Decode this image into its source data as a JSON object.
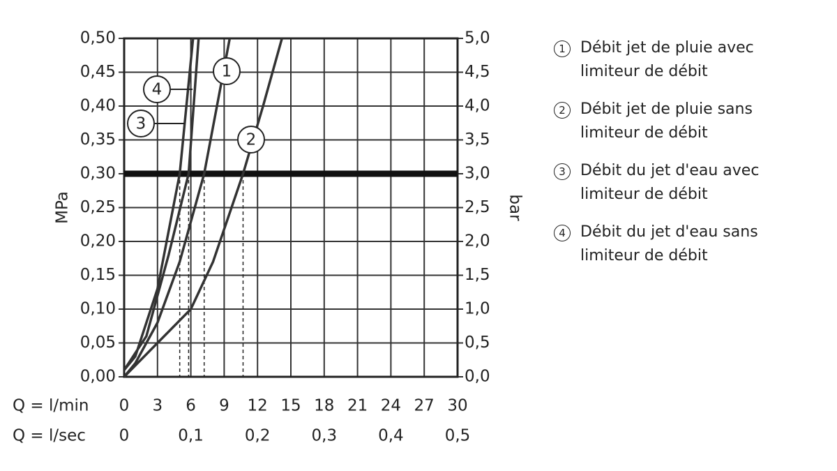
{
  "chart_data": {
    "type": "line",
    "xlabel": "Q = l/min",
    "x2label": "Q = l/sec",
    "ylabel": "MPa",
    "y2label": "bar",
    "xlim": [
      0,
      30
    ],
    "xticks": [
      0,
      3,
      6,
      9,
      12,
      15,
      18,
      21,
      24,
      27,
      30
    ],
    "x2lim": [
      0,
      0.5
    ],
    "x2ticks": [
      0,
      {
        "value": 0.1,
        "label": "0,1"
      },
      {
        "value": 0.2,
        "label": "0,2"
      },
      {
        "value": 0.3,
        "label": "0,3"
      },
      {
        "value": 0.4,
        "label": "0,4"
      },
      {
        "value": 0.5,
        "label": "0,5"
      }
    ],
    "ylim": [
      0,
      0.5
    ],
    "yticks": [
      {
        "value": 0,
        "label": "0,00"
      },
      {
        "value": 0.05,
        "label": "0,05"
      },
      {
        "value": 0.1,
        "label": "0,10"
      },
      {
        "value": 0.15,
        "label": "0,15"
      },
      {
        "value": 0.2,
        "label": "0,20"
      },
      {
        "value": 0.25,
        "label": "0,25"
      },
      {
        "value": 0.3,
        "label": "0,30"
      },
      {
        "value": 0.35,
        "label": "0,35"
      },
      {
        "value": 0.4,
        "label": "0,40"
      },
      {
        "value": 0.45,
        "label": "0,45"
      },
      {
        "value": 0.5,
        "label": "0,50"
      }
    ],
    "y2lim": [
      0,
      5
    ],
    "y2ticks": [
      {
        "value": 0,
        "label": "0,0"
      },
      {
        "value": 0.5,
        "label": "0,5"
      },
      {
        "value": 1,
        "label": "1,0"
      },
      {
        "value": 1.5,
        "label": "1,5"
      },
      {
        "value": 2,
        "label": "2,0"
      },
      {
        "value": 2.5,
        "label": "2,5"
      },
      {
        "value": 3,
        "label": "3,0"
      },
      {
        "value": 3.5,
        "label": "3,5"
      },
      {
        "value": 4,
        "label": "4,0"
      },
      {
        "value": 4.5,
        "label": "4,5"
      },
      {
        "value": 5,
        "label": "5,0"
      }
    ],
    "grid": true,
    "color": "#333333",
    "reference_line": 0.3,
    "drop_lines": [
      5.0,
      5.8,
      7.2,
      10.7
    ],
    "series": [
      {
        "label": "1",
        "name": "Débit jet de pluie avec limiteur de débit",
        "x": [
          0,
          1,
          3,
          5,
          7.2,
          9.5
        ],
        "values": [
          0,
          0.02,
          0.08,
          0.17,
          0.3,
          0.5
        ]
      },
      {
        "label": "2",
        "name": "Débit jet de pluie sans limiteur de débit",
        "x": [
          0,
          3,
          6,
          8,
          10.7,
          12.5,
          14.2
        ],
        "values": [
          0,
          0.05,
          0.1,
          0.17,
          0.3,
          0.4,
          0.5
        ]
      },
      {
        "label": "3",
        "name": "Débit du jet d'eau avec limiteur de débit",
        "x": [
          0,
          1,
          3,
          5,
          6.2
        ],
        "values": [
          0.01,
          0.03,
          0.13,
          0.3,
          0.5
        ]
      },
      {
        "label": "4",
        "name": "Débit du jet d'eau sans limiteur de débit",
        "x": [
          0,
          2,
          4,
          5.8,
          6.7
        ],
        "values": [
          0.01,
          0.06,
          0.18,
          0.3,
          0.5
        ]
      }
    ]
  }
}
